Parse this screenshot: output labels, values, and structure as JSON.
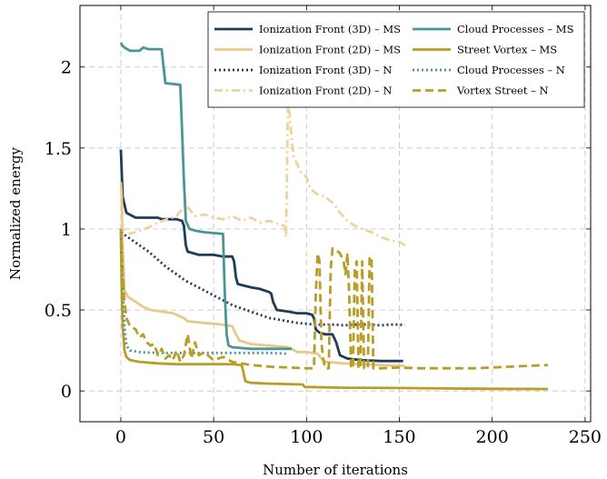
{
  "chart_data": {
    "type": "line",
    "title": "",
    "xlabel": "Number of iterations",
    "ylabel": "Normalized energy",
    "xlim": [
      -22,
      253
    ],
    "ylim": [
      -0.19,
      2.38
    ],
    "xticks": [
      0,
      50,
      100,
      150,
      200,
      250
    ],
    "yticks": [
      0,
      0.5,
      1,
      1.5,
      2
    ],
    "xtick_labels": [
      "0",
      "50",
      "100",
      "150",
      "200",
      "250"
    ],
    "ytick_labels": [
      "0",
      "0.5",
      "1",
      "1.5",
      "2"
    ],
    "grid": true,
    "grid_style": "dashed",
    "legend_position": "top-right",
    "legend_columns": 2,
    "series": [
      {
        "name": "Ionization Front (3D) – MS",
        "color": "#1f3b5c",
        "dash": "solid",
        "points": [
          [
            0,
            1.49
          ],
          [
            1,
            1.2
          ],
          [
            3,
            1.1
          ],
          [
            8,
            1.07
          ],
          [
            20,
            1.07
          ],
          [
            22,
            1.06
          ],
          [
            30,
            1.06
          ],
          [
            33,
            1.05
          ],
          [
            34,
            1.02
          ],
          [
            35,
            0.9
          ],
          [
            36,
            0.86
          ],
          [
            42,
            0.84
          ],
          [
            50,
            0.84
          ],
          [
            55,
            0.83
          ],
          [
            60,
            0.83
          ],
          [
            61,
            0.8
          ],
          [
            62,
            0.7
          ],
          [
            63,
            0.66
          ],
          [
            70,
            0.64
          ],
          [
            75,
            0.63
          ],
          [
            80,
            0.61
          ],
          [
            81,
            0.6
          ],
          [
            82,
            0.55
          ],
          [
            84,
            0.5
          ],
          [
            90,
            0.49
          ],
          [
            95,
            0.48
          ],
          [
            100,
            0.48
          ],
          [
            103,
            0.47
          ],
          [
            104,
            0.45
          ],
          [
            105,
            0.38
          ],
          [
            107,
            0.36
          ],
          [
            110,
            0.35
          ],
          [
            114,
            0.35
          ],
          [
            116,
            0.3
          ],
          [
            118,
            0.22
          ],
          [
            122,
            0.2
          ],
          [
            130,
            0.19
          ],
          [
            140,
            0.185
          ],
          [
            152,
            0.185
          ]
        ]
      },
      {
        "name": "Ionization Front (2D) – MS",
        "color": "#e8c98a",
        "dash": "solid",
        "points": [
          [
            0,
            1.29
          ],
          [
            0.5,
            1.2
          ],
          [
            1,
            0.9
          ],
          [
            2,
            0.62
          ],
          [
            4,
            0.58
          ],
          [
            8,
            0.55
          ],
          [
            12,
            0.52
          ],
          [
            16,
            0.5
          ],
          [
            22,
            0.49
          ],
          [
            28,
            0.48
          ],
          [
            34,
            0.45
          ],
          [
            36,
            0.43
          ],
          [
            45,
            0.42
          ],
          [
            55,
            0.41
          ],
          [
            60,
            0.4
          ],
          [
            62,
            0.35
          ],
          [
            64,
            0.31
          ],
          [
            70,
            0.29
          ],
          [
            80,
            0.28
          ],
          [
            90,
            0.27
          ],
          [
            92,
            0.26
          ],
          [
            95,
            0.24
          ],
          [
            100,
            0.24
          ],
          [
            106,
            0.23
          ],
          [
            108,
            0.2
          ],
          [
            110,
            0.18
          ],
          [
            120,
            0.17
          ],
          [
            130,
            0.165
          ],
          [
            140,
            0.16
          ],
          [
            150,
            0.155
          ],
          [
            153,
            0.155
          ]
        ]
      },
      {
        "name": "Ionization Front (3D) – N",
        "color": "#1f3b5c",
        "dash": "dotted",
        "points": [
          [
            0,
            0.98
          ],
          [
            5,
            0.94
          ],
          [
            10,
            0.9
          ],
          [
            15,
            0.86
          ],
          [
            20,
            0.81
          ],
          [
            25,
            0.76
          ],
          [
            30,
            0.72
          ],
          [
            35,
            0.68
          ],
          [
            40,
            0.65
          ],
          [
            45,
            0.62
          ],
          [
            50,
            0.59
          ],
          [
            55,
            0.56
          ],
          [
            60,
            0.53
          ],
          [
            65,
            0.51
          ],
          [
            70,
            0.49
          ],
          [
            75,
            0.47
          ],
          [
            80,
            0.45
          ],
          [
            85,
            0.44
          ],
          [
            90,
            0.43
          ],
          [
            95,
            0.42
          ],
          [
            100,
            0.415
          ],
          [
            105,
            0.41
          ],
          [
            110,
            0.41
          ],
          [
            115,
            0.41
          ],
          [
            120,
            0.405
          ],
          [
            125,
            0.41
          ],
          [
            130,
            0.41
          ],
          [
            135,
            0.41
          ],
          [
            140,
            0.405
          ],
          [
            145,
            0.41
          ],
          [
            150,
            0.41
          ],
          [
            153,
            0.405
          ]
        ]
      },
      {
        "name": "Ionization Front (2D) – N",
        "color": "#ecd49e",
        "dash": "dashdot",
        "points": [
          [
            0,
            1.07
          ],
          [
            2,
            1.0
          ],
          [
            5,
            0.97
          ],
          [
            10,
            0.99
          ],
          [
            15,
            1.01
          ],
          [
            20,
            1.04
          ],
          [
            25,
            1.06
          ],
          [
            30,
            1.08
          ],
          [
            35,
            1.15
          ],
          [
            37,
            1.12
          ],
          [
            40,
            1.08
          ],
          [
            45,
            1.09
          ],
          [
            50,
            1.07
          ],
          [
            55,
            1.06
          ],
          [
            60,
            1.08
          ],
          [
            65,
            1.05
          ],
          [
            70,
            1.07
          ],
          [
            75,
            1.04
          ],
          [
            80,
            1.05
          ],
          [
            85,
            1.03
          ],
          [
            88,
            1.02
          ],
          [
            89,
            0.95
          ],
          [
            90,
            1.78
          ],
          [
            91,
            1.7
          ],
          [
            92,
            1.55
          ],
          [
            93,
            1.45
          ],
          [
            95,
            1.4
          ],
          [
            97,
            1.35
          ],
          [
            100,
            1.32
          ],
          [
            102,
            1.25
          ],
          [
            105,
            1.22
          ],
          [
            110,
            1.2
          ],
          [
            115,
            1.15
          ],
          [
            118,
            1.1
          ],
          [
            122,
            1.05
          ],
          [
            126,
            1.02
          ],
          [
            130,
            1.0
          ],
          [
            135,
            0.98
          ],
          [
            140,
            0.95
          ],
          [
            145,
            0.93
          ],
          [
            150,
            0.92
          ],
          [
            153,
            0.9
          ]
        ]
      },
      {
        "name": "Cloud Processes – MS",
        "color": "#4a9595",
        "dash": "solid",
        "points": [
          [
            0,
            2.15
          ],
          [
            1,
            2.13
          ],
          [
            2,
            2.12
          ],
          [
            5,
            2.1
          ],
          [
            10,
            2.1
          ],
          [
            12,
            2.12
          ],
          [
            15,
            2.11
          ],
          [
            22,
            2.11
          ],
          [
            23,
            2.0
          ],
          [
            24,
            1.9
          ],
          [
            32,
            1.89
          ],
          [
            33,
            1.6
          ],
          [
            34,
            1.3
          ],
          [
            35,
            1.05
          ],
          [
            37,
            1.0
          ],
          [
            40,
            0.99
          ],
          [
            45,
            0.98
          ],
          [
            55,
            0.97
          ],
          [
            56,
            0.6
          ],
          [
            57,
            0.35
          ],
          [
            58,
            0.28
          ],
          [
            60,
            0.27
          ],
          [
            70,
            0.26
          ],
          [
            80,
            0.26
          ],
          [
            90,
            0.26
          ],
          [
            92,
            0.26
          ]
        ]
      },
      {
        "name": "Street Vortex – MS",
        "color": "#b89e26",
        "dash": "solid",
        "points": [
          [
            0,
            0.98
          ],
          [
            0.5,
            0.6
          ],
          [
            1,
            0.4
          ],
          [
            2,
            0.25
          ],
          [
            3,
            0.21
          ],
          [
            5,
            0.19
          ],
          [
            10,
            0.18
          ],
          [
            20,
            0.17
          ],
          [
            30,
            0.165
          ],
          [
            40,
            0.165
          ],
          [
            50,
            0.165
          ],
          [
            60,
            0.165
          ],
          [
            65,
            0.16
          ],
          [
            66,
            0.12
          ],
          [
            67,
            0.06
          ],
          [
            70,
            0.05
          ],
          [
            80,
            0.045
          ],
          [
            98,
            0.04
          ],
          [
            99,
            0.025
          ],
          [
            120,
            0.02
          ],
          [
            150,
            0.018
          ],
          [
            180,
            0.015
          ],
          [
            200,
            0.013
          ],
          [
            230,
            0.012
          ]
        ]
      },
      {
        "name": "Cloud Processes – N",
        "color": "#4a9595",
        "dash": "dotted",
        "points": [
          [
            0,
            1.0
          ],
          [
            1,
            0.7
          ],
          [
            2,
            0.4
          ],
          [
            3,
            0.28
          ],
          [
            5,
            0.25
          ],
          [
            10,
            0.24
          ],
          [
            20,
            0.235
          ],
          [
            40,
            0.235
          ],
          [
            60,
            0.235
          ],
          [
            80,
            0.235
          ],
          [
            90,
            0.23
          ]
        ]
      },
      {
        "name": "Vortex Street – N",
        "color": "#b89e26",
        "dash": "dashed",
        "points": [
          [
            0,
            1.0
          ],
          [
            1,
            0.7
          ],
          [
            2,
            0.55
          ],
          [
            3,
            0.45
          ],
          [
            5,
            0.4
          ],
          [
            8,
            0.38
          ],
          [
            10,
            0.33
          ],
          [
            12,
            0.35
          ],
          [
            14,
            0.3
          ],
          [
            16,
            0.28
          ],
          [
            18,
            0.29
          ],
          [
            20,
            0.22
          ],
          [
            22,
            0.26
          ],
          [
            24,
            0.2
          ],
          [
            26,
            0.22
          ],
          [
            28,
            0.19
          ],
          [
            30,
            0.25
          ],
          [
            32,
            0.18
          ],
          [
            34,
            0.22
          ],
          [
            36,
            0.35
          ],
          [
            38,
            0.2
          ],
          [
            40,
            0.3
          ],
          [
            42,
            0.22
          ],
          [
            45,
            0.24
          ],
          [
            50,
            0.19
          ],
          [
            55,
            0.21
          ],
          [
            60,
            0.18
          ],
          [
            70,
            0.16
          ],
          [
            80,
            0.15
          ],
          [
            90,
            0.145
          ],
          [
            100,
            0.14
          ],
          [
            104,
            0.14
          ],
          [
            105,
            0.6
          ],
          [
            106,
            0.85
          ],
          [
            107,
            0.8
          ],
          [
            108,
            0.3
          ],
          [
            109,
            0.2
          ],
          [
            110,
            0.14
          ],
          [
            112,
            0.14
          ],
          [
            113,
            0.75
          ],
          [
            114,
            0.88
          ],
          [
            116,
            0.87
          ],
          [
            118,
            0.85
          ],
          [
            120,
            0.8
          ],
          [
            121,
            0.72
          ],
          [
            122,
            0.85
          ],
          [
            123,
            0.6
          ],
          [
            124,
            0.14
          ],
          [
            125,
            0.14
          ],
          [
            126,
            0.75
          ],
          [
            127,
            0.8
          ],
          [
            128,
            0.14
          ],
          [
            129,
            0.14
          ],
          [
            130,
            0.8
          ],
          [
            131,
            0.14
          ],
          [
            132,
            0.14
          ],
          [
            133,
            0.14
          ],
          [
            134,
            0.83
          ],
          [
            135,
            0.82
          ],
          [
            136,
            0.14
          ],
          [
            140,
            0.14
          ],
          [
            150,
            0.145
          ],
          [
            160,
            0.14
          ],
          [
            170,
            0.14
          ],
          [
            180,
            0.14
          ],
          [
            190,
            0.14
          ],
          [
            200,
            0.145
          ],
          [
            210,
            0.15
          ],
          [
            220,
            0.155
          ],
          [
            230,
            0.16
          ]
        ]
      }
    ]
  }
}
